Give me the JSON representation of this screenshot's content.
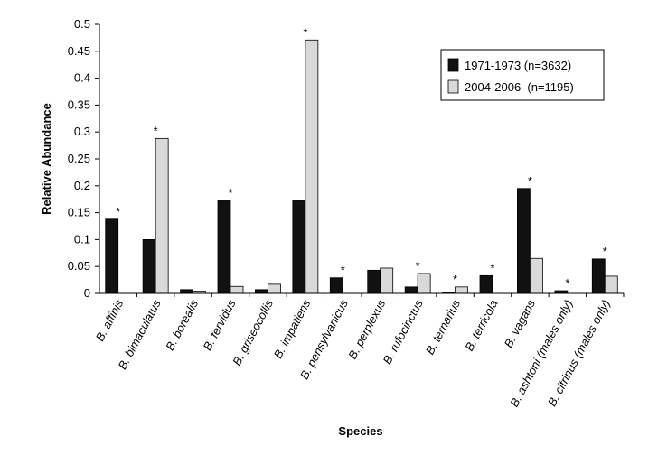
{
  "chart_data": {
    "type": "bar",
    "y_label": "Relative Abundance",
    "x_label": "Species",
    "categories": [
      "B. affinis",
      "B. bimaculatus",
      "B. borealis",
      "B. fervidus",
      "B. griseocollis",
      "B. impatiens",
      "B. pensylvanicus",
      "B. perplexus",
      "B. rufocinctus",
      "B. ternarius",
      "B. terricola",
      "B. vagans",
      "B. ashtoni (males only)",
      "B. citrinus (males only)"
    ],
    "series": [
      {
        "name": "1971-1973 (n=3632)",
        "color": "#111111",
        "values": [
          0.138,
          0.1,
          0.007,
          0.173,
          0.007,
          0.173,
          0.029,
          0.043,
          0.012,
          0.002,
          0.033,
          0.195,
          0.005,
          0.064
        ]
      },
      {
        "name": "2004-2006  (n=1195)",
        "color": "#d9d9d9",
        "values": [
          0,
          0.288,
          0.004,
          0.013,
          0.017,
          0.471,
          0,
          0.047,
          0.037,
          0.012,
          0,
          0.065,
          0,
          0.032
        ]
      }
    ],
    "significance": [
      "*",
      "*",
      null,
      "*",
      null,
      "*",
      "*",
      null,
      "*",
      "*",
      "*",
      "*",
      "*",
      "*"
    ],
    "ylim": [
      0,
      0.5
    ],
    "yticks": [
      0,
      0.05,
      0.1,
      0.15,
      0.2,
      0.25,
      0.3,
      0.35,
      0.4,
      0.45,
      0.5
    ],
    "grid": false,
    "legend": "top-right"
  }
}
